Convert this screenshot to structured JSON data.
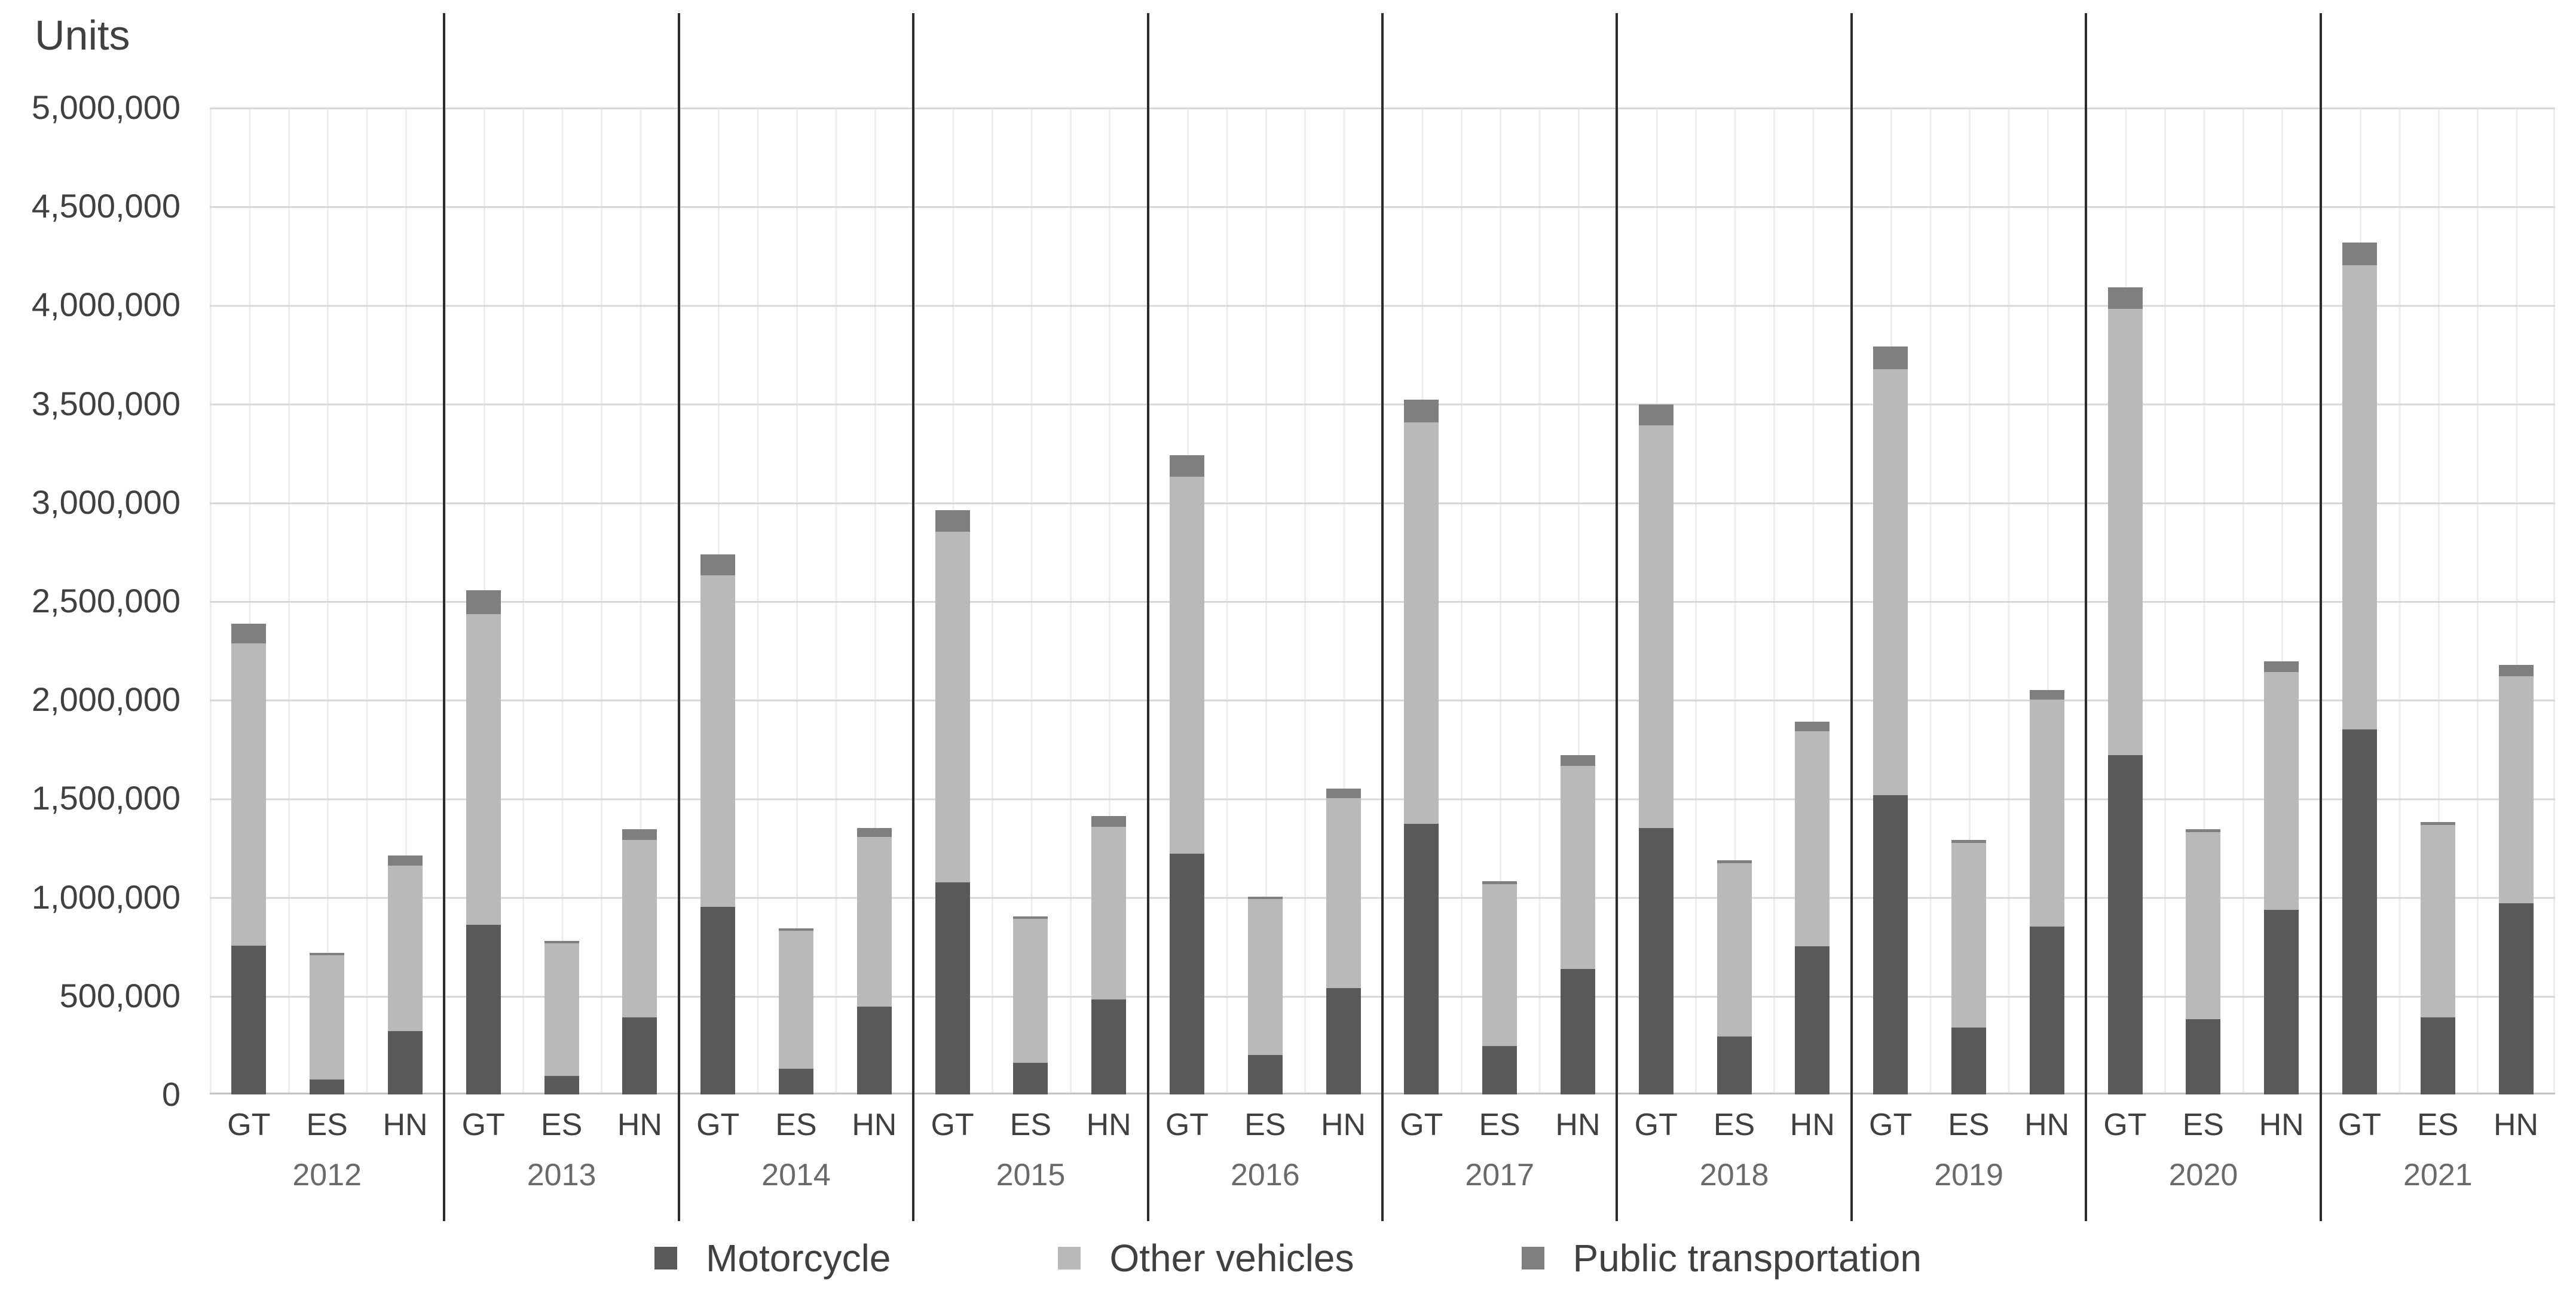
{
  "title": "Units",
  "legend": [
    {
      "label": "Motorcycle",
      "color": "#595959"
    },
    {
      "label": "Other vehicles",
      "color": "#b9b9b9"
    },
    {
      "label": "Public transportation",
      "color": "#7f7f7f"
    }
  ],
  "colors": {
    "major_gridline": "#d8d8d8",
    "minor_gridline": "#ededed",
    "axis_line": "#c3c3c3",
    "year_separator": "#2b2b2b",
    "axis_text": "#404040",
    "year_text": "#6a6a6a"
  },
  "chart_data": {
    "type": "bar",
    "stacked": true,
    "title": "Units",
    "ylabel": "Units",
    "xlabel": "",
    "grid": true,
    "legend_position": "bottom",
    "ylim": [
      0,
      5000000
    ],
    "ytick_step": 500000,
    "ytick_labels": [
      "5,000,000",
      "4,500,000",
      "4,000,000",
      "3,500,000",
      "3,000,000",
      "2,500,000",
      "2,000,000",
      "1,500,000",
      "1,000,000",
      "500,000",
      "0"
    ],
    "categories": [
      "GT",
      "ES",
      "HN"
    ],
    "series": [
      "Motorcycle",
      "Other vehicles",
      "Public transportation"
    ],
    "years": [
      "2012",
      "2013",
      "2014",
      "2015",
      "2016",
      "2017",
      "2018",
      "2019",
      "2020",
      "2021"
    ],
    "groups": [
      {
        "year": "2012",
        "GT": [
          755000,
          1530000,
          100000
        ],
        "ES": [
          75000,
          630000,
          12000
        ],
        "HN": [
          320000,
          840000,
          50000
        ]
      },
      {
        "year": "2013",
        "GT": [
          860000,
          1575000,
          120000
        ],
        "ES": [
          95000,
          670000,
          12000
        ],
        "HN": [
          390000,
          900000,
          55000
        ]
      },
      {
        "year": "2014",
        "GT": [
          950000,
          1680000,
          105000
        ],
        "ES": [
          130000,
          700000,
          12000
        ],
        "HN": [
          445000,
          860000,
          45000
        ]
      },
      {
        "year": "2015",
        "GT": [
          1075000,
          1775000,
          110000
        ],
        "ES": [
          160000,
          730000,
          12000
        ],
        "HN": [
          480000,
          875000,
          55000
        ]
      },
      {
        "year": "2016",
        "GT": [
          1220000,
          1910000,
          110000
        ],
        "ES": [
          200000,
          790000,
          12000
        ],
        "HN": [
          540000,
          960000,
          50000
        ]
      },
      {
        "year": "2017",
        "GT": [
          1370000,
          2035000,
          115000
        ],
        "ES": [
          245000,
          820000,
          15000
        ],
        "HN": [
          635000,
          1030000,
          55000
        ]
      },
      {
        "year": "2018",
        "GT": [
          1350000,
          2040000,
          105000
        ],
        "ES": [
          295000,
          875000,
          15000
        ],
        "HN": [
          750000,
          1090000,
          50000
        ]
      },
      {
        "year": "2019",
        "GT": [
          1515000,
          2160000,
          115000
        ],
        "ES": [
          340000,
          935000,
          15000
        ],
        "HN": [
          850000,
          1150000,
          50000
        ]
      },
      {
        "year": "2020",
        "GT": [
          1720000,
          2260000,
          110000
        ],
        "ES": [
          380000,
          950000,
          15000
        ],
        "HN": [
          935000,
          1205000,
          55000
        ]
      },
      {
        "year": "2021",
        "GT": [
          1850000,
          2350000,
          115000
        ],
        "ES": [
          390000,
          975000,
          15000
        ],
        "HN": [
          970000,
          1150000,
          55000
        ]
      }
    ]
  }
}
